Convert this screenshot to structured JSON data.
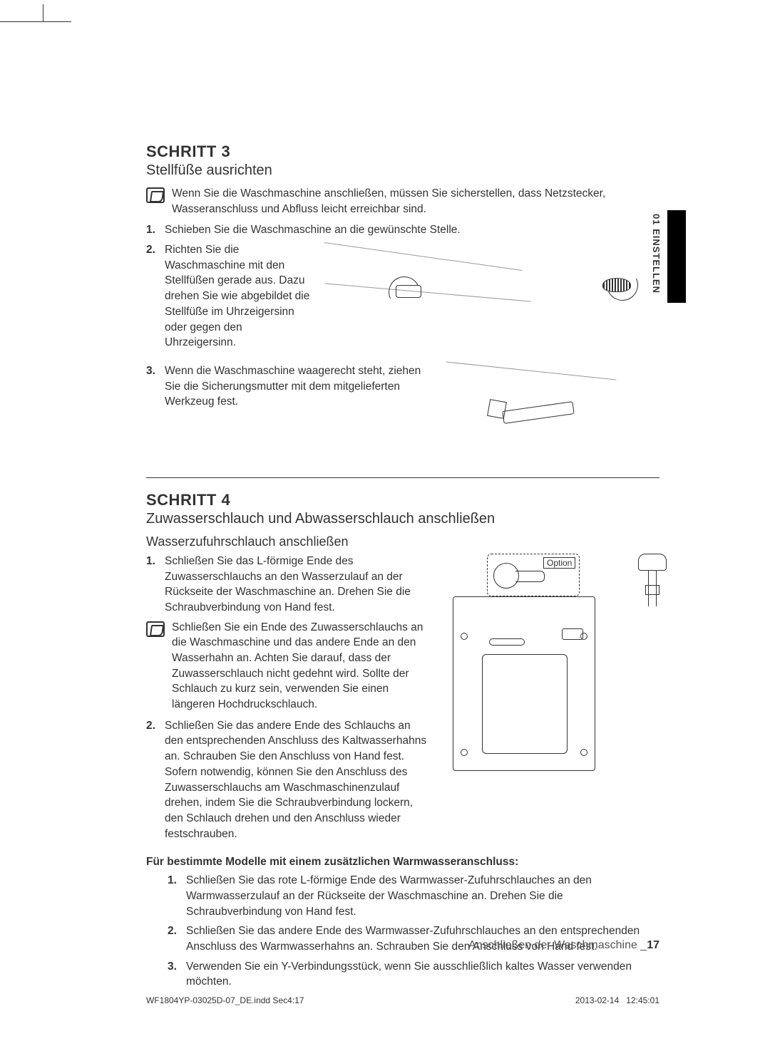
{
  "sideTab": {
    "label": "01  EINSTELLEN",
    "bg": "#000000",
    "text_color": "#000000"
  },
  "step3": {
    "heading": "SCHRITT 3",
    "subtitle": "Stellfüße ausrichten",
    "note": "Wenn Sie die Waschmaschine anschließen, müssen Sie sicherstellen, dass Netzstecker, Wasseranschluss und Abfluss leicht erreichbar sind.",
    "items": [
      "Schieben Sie die Waschmaschine an die gewünschte Stelle.",
      "Richten Sie die Waschmaschine mit den Stellfüßen gerade aus. Dazu drehen Sie wie abgebildet die Stellfüße im Uhrzeigersinn oder gegen den Uhrzeigersinn.",
      "Wenn die Waschmaschine waagerecht steht, ziehen Sie die Sicherungsmutter mit dem mitgelieferten Werkzeug fest."
    ]
  },
  "step4": {
    "heading": "SCHRITT 4",
    "subtitle": "Zuwasserschlauch und Abwasserschlauch anschließen",
    "subheading": "Wasserzufuhrschlauch anschließen",
    "items": [
      "Schließen Sie das L-förmige Ende des Zuwasserschlauchs an den Wasserzulauf an der Rückseite der Waschmaschine an. Drehen Sie die Schraubverbindung von Hand fest.",
      "Schließen Sie das andere Ende des Schlauchs an den entsprechenden Anschluss des Kaltwasserhahns an. Schrauben Sie den Anschluss von Hand fest. Sofern notwendig, können Sie den Anschluss des Zuwasserschlauchs am Waschmaschinenzulauf drehen, indem Sie die Schraubverbindung lockern, den Schlauch drehen und den Anschluss wieder festschrauben."
    ],
    "note": "Schließen Sie ein Ende des Zuwasserschlauchs an die Waschmaschine und das andere Ende an den Wasserhahn an. Achten Sie darauf, dass der Zuwasserschlauch nicht gedehnt wird. Sollte der Schlauch zu kurz sein, verwenden Sie einen längeren Hochdruckschlauch.",
    "callout_label": "Option",
    "bold_note": "Für bestimmte Modelle mit einem zusätzlichen Warmwasseranschluss:",
    "warm_items": [
      "Schließen Sie das rote L-förmige Ende des Warmwasser-Zufuhrschlauches an den Warmwasserzulauf an der Rückseite der Waschmaschine an. Drehen Sie die Schraubverbindung von Hand fest.",
      "Schließen Sie das andere Ende des Warmwasser-Zufuhrschlauches an den entsprechenden Anschluss des Warmwasserhahns an. Schrauben Sie den Anschluss von Hand fest.",
      "Verwenden Sie ein Y-Verbindungsstück, wenn Sie ausschließlich kaltes Wasser verwenden möchten."
    ]
  },
  "footer": {
    "section": "Anschließen der Waschmaschine _",
    "page_num": "17",
    "indd": "WF1804YP-03025D-07_DE.indd   Sec4:17",
    "date": "2013-02-14",
    "time": "12:45:01"
  },
  "colors": {
    "text": "#333333",
    "muted": "#555555",
    "black": "#000000",
    "bg": "#ffffff"
  },
  "typography": {
    "body_pt": 11,
    "heading_pt": 16,
    "subtitle_pt": 15
  }
}
